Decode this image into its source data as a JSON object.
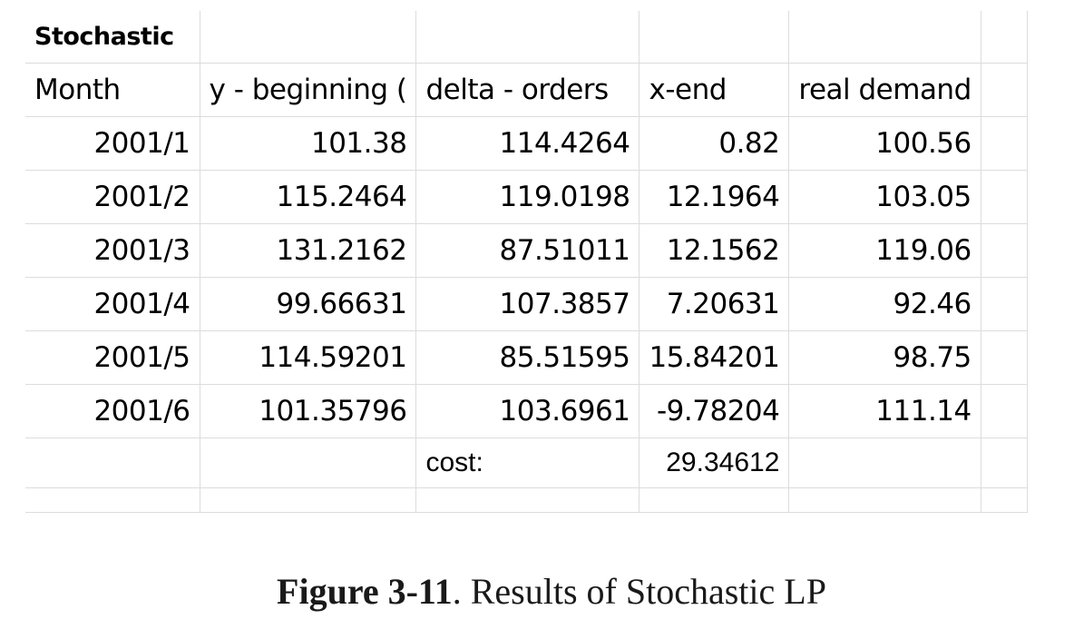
{
  "table": {
    "title": "Stochastic",
    "headers": [
      "Month",
      "y - beginning (",
      "delta - orders",
      "x-end",
      "real demand"
    ],
    "rows": [
      [
        "2001/1",
        "101.38",
        "114.4264",
        "0.82",
        "100.56"
      ],
      [
        "2001/2",
        "115.2464",
        "119.0198",
        "12.1964",
        "103.05"
      ],
      [
        "2001/3",
        "131.2162",
        "87.51011",
        "12.1562",
        "119.06"
      ],
      [
        "2001/4",
        "99.66631",
        "107.3857",
        "7.20631",
        "92.46"
      ],
      [
        "2001/5",
        "114.59201",
        "85.51595",
        "15.84201",
        "98.75"
      ],
      [
        "2001/6",
        "101.35796",
        "103.6961",
        "-9.78204",
        "111.14"
      ]
    ],
    "cost_label": "cost:",
    "cost_value": "29.34612"
  },
  "caption": {
    "label": "Figure 3-11",
    "text": ". Results of Stochastic LP"
  }
}
